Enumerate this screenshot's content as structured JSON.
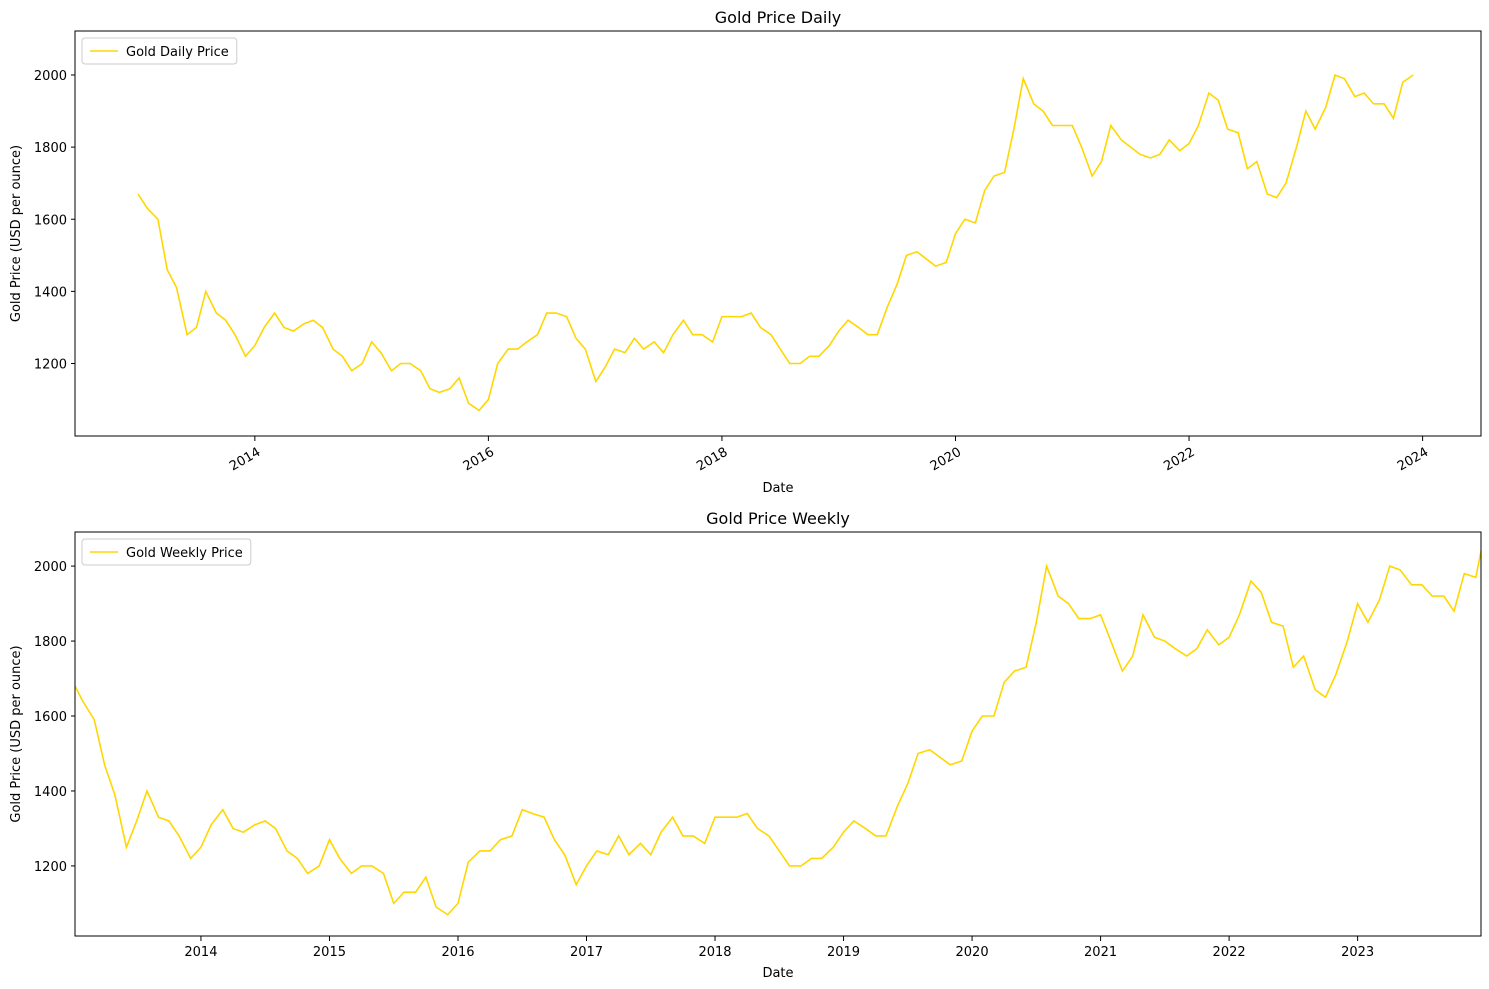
{
  "chart_data": [
    {
      "type": "line",
      "title": "Gold Price Daily",
      "x_label": "Date",
      "y_label": "Gold Price (USD per ounce)",
      "x": [
        2013.0,
        2013.08,
        2013.17,
        2013.25,
        2013.33,
        2013.42,
        2013.5,
        2013.58,
        2013.67,
        2013.75,
        2013.83,
        2013.92,
        2014.0,
        2014.08,
        2014.17,
        2014.25,
        2014.33,
        2014.42,
        2014.5,
        2014.58,
        2014.67,
        2014.75,
        2014.83,
        2014.92,
        2015.0,
        2015.08,
        2015.17,
        2015.25,
        2015.33,
        2015.42,
        2015.5,
        2015.58,
        2015.67,
        2015.75,
        2015.83,
        2015.92,
        2016.0,
        2016.08,
        2016.17,
        2016.25,
        2016.33,
        2016.42,
        2016.5,
        2016.58,
        2016.67,
        2016.75,
        2016.83,
        2016.92,
        2017.0,
        2017.08,
        2017.17,
        2017.25,
        2017.33,
        2017.42,
        2017.5,
        2017.58,
        2017.67,
        2017.75,
        2017.83,
        2017.92,
        2018.0,
        2018.08,
        2018.17,
        2018.25,
        2018.33,
        2018.42,
        2018.5,
        2018.58,
        2018.67,
        2018.75,
        2018.83,
        2018.92,
        2019.0,
        2019.08,
        2019.17,
        2019.25,
        2019.33,
        2019.42,
        2019.5,
        2019.58,
        2019.67,
        2019.75,
        2019.83,
        2019.92,
        2020.0,
        2020.08,
        2020.17,
        2020.25,
        2020.33,
        2020.42,
        2020.5,
        2020.58,
        2020.67,
        2020.75,
        2020.83,
        2020.92,
        2021.0,
        2021.08,
        2021.17,
        2021.25,
        2021.33,
        2021.42,
        2021.5,
        2021.58,
        2021.67,
        2021.75,
        2021.83,
        2021.92,
        2022.0,
        2022.08,
        2022.17,
        2022.25,
        2022.33,
        2022.42,
        2022.5,
        2022.58,
        2022.67,
        2022.75,
        2022.83,
        2022.92,
        2023.0,
        2023.08,
        2023.17,
        2023.25,
        2023.33,
        2023.42,
        2023.5,
        2023.58,
        2023.67,
        2023.75,
        2023.83,
        2023.92
      ],
      "series": [
        {
          "name": "Gold Daily Price",
          "color": "#ffd700",
          "values": [
            1670,
            1630,
            1600,
            1460,
            1410,
            1280,
            1300,
            1400,
            1340,
            1320,
            1280,
            1220,
            1250,
            1300,
            1340,
            1300,
            1290,
            1310,
            1320,
            1300,
            1240,
            1220,
            1180,
            1200,
            1260,
            1230,
            1180,
            1200,
            1200,
            1180,
            1130,
            1120,
            1130,
            1160,
            1090,
            1070,
            1100,
            1200,
            1240,
            1240,
            1260,
            1280,
            1340,
            1340,
            1330,
            1270,
            1240,
            1150,
            1190,
            1240,
            1230,
            1270,
            1240,
            1260,
            1230,
            1280,
            1320,
            1280,
            1280,
            1260,
            1330,
            1330,
            1330,
            1340,
            1300,
            1280,
            1240,
            1200,
            1200,
            1220,
            1220,
            1250,
            1290,
            1320,
            1300,
            1280,
            1280,
            1360,
            1420,
            1500,
            1510,
            1490,
            1470,
            1480,
            1560,
            1600,
            1590,
            1680,
            1720,
            1730,
            1850,
            1990,
            1920,
            1900,
            1860,
            1860,
            1860,
            1800,
            1720,
            1760,
            1860,
            1820,
            1800,
            1780,
            1770,
            1780,
            1820,
            1790,
            1810,
            1860,
            1950,
            1930,
            1850,
            1840,
            1740,
            1760,
            1670,
            1660,
            1700,
            1800,
            1900,
            1850,
            1910,
            2000,
            1990,
            1940,
            1950,
            1920,
            1920,
            1880,
            1980,
            2000
          ]
        }
      ],
      "xlim": [
        2012.46,
        2024.5
      ],
      "xticks": [
        2014,
        2016,
        2018,
        2020,
        2022,
        2024
      ],
      "xtick_rotation": 30,
      "ylim": [
        999,
        2122
      ],
      "yticks": [
        1200,
        1400,
        1600,
        1800,
        2000
      ],
      "legend": "upper left"
    },
    {
      "type": "line",
      "title": "Gold Price Weekly",
      "x_label": "Date",
      "y_label": "Gold Price (USD per ounce)",
      "x": [
        2013.02,
        2013.08,
        2013.17,
        2013.25,
        2013.33,
        2013.42,
        2013.5,
        2013.58,
        2013.67,
        2013.75,
        2013.83,
        2013.92,
        2014.0,
        2014.08,
        2014.17,
        2014.25,
        2014.33,
        2014.42,
        2014.5,
        2014.58,
        2014.67,
        2014.75,
        2014.83,
        2014.92,
        2015.0,
        2015.08,
        2015.17,
        2015.25,
        2015.33,
        2015.42,
        2015.5,
        2015.58,
        2015.67,
        2015.75,
        2015.83,
        2015.92,
        2016.0,
        2016.08,
        2016.17,
        2016.25,
        2016.33,
        2016.42,
        2016.5,
        2016.58,
        2016.67,
        2016.75,
        2016.83,
        2016.92,
        2017.0,
        2017.08,
        2017.17,
        2017.25,
        2017.33,
        2017.42,
        2017.5,
        2017.58,
        2017.67,
        2017.75,
        2017.83,
        2017.92,
        2018.0,
        2018.08,
        2018.17,
        2018.25,
        2018.33,
        2018.42,
        2018.5,
        2018.58,
        2018.67,
        2018.75,
        2018.83,
        2018.92,
        2019.0,
        2019.08,
        2019.17,
        2019.25,
        2019.33,
        2019.42,
        2019.5,
        2019.58,
        2019.67,
        2019.75,
        2019.83,
        2019.92,
        2020.0,
        2020.08,
        2020.17,
        2020.25,
        2020.33,
        2020.42,
        2020.5,
        2020.58,
        2020.67,
        2020.75,
        2020.83,
        2020.92,
        2021.0,
        2021.08,
        2021.17,
        2021.25,
        2021.33,
        2021.42,
        2021.5,
        2021.58,
        2021.67,
        2021.75,
        2021.83,
        2021.92,
        2022.0,
        2022.08,
        2022.17,
        2022.25,
        2022.33,
        2022.42,
        2022.5,
        2022.58,
        2022.67,
        2022.75,
        2022.83,
        2022.92,
        2023.0,
        2023.08,
        2023.17,
        2023.25,
        2023.33,
        2023.42,
        2023.5,
        2023.58,
        2023.67,
        2023.75,
        2023.83,
        2023.92,
        2023.96
      ],
      "series": [
        {
          "name": "Gold Weekly Price",
          "color": "#ffd700",
          "values": [
            1680,
            1640,
            1590,
            1470,
            1390,
            1250,
            1320,
            1400,
            1330,
            1320,
            1280,
            1220,
            1250,
            1310,
            1350,
            1300,
            1290,
            1310,
            1320,
            1300,
            1240,
            1220,
            1180,
            1200,
            1270,
            1220,
            1180,
            1200,
            1200,
            1180,
            1100,
            1130,
            1130,
            1170,
            1090,
            1070,
            1100,
            1210,
            1240,
            1240,
            1270,
            1280,
            1350,
            1340,
            1330,
            1270,
            1230,
            1150,
            1200,
            1240,
            1230,
            1280,
            1230,
            1260,
            1230,
            1290,
            1330,
            1280,
            1280,
            1260,
            1330,
            1330,
            1330,
            1340,
            1300,
            1280,
            1240,
            1200,
            1200,
            1220,
            1220,
            1250,
            1290,
            1320,
            1300,
            1280,
            1280,
            1360,
            1420,
            1500,
            1510,
            1490,
            1470,
            1480,
            1560,
            1600,
            1600,
            1690,
            1720,
            1730,
            1850,
            2000,
            1920,
            1900,
            1860,
            1860,
            1870,
            1800,
            1720,
            1760,
            1870,
            1810,
            1800,
            1780,
            1760,
            1780,
            1830,
            1790,
            1810,
            1870,
            1960,
            1930,
            1850,
            1840,
            1730,
            1760,
            1670,
            1650,
            1710,
            1800,
            1900,
            1850,
            1910,
            2000,
            1990,
            1950,
            1950,
            1920,
            1920,
            1880,
            1980,
            1970,
            2040
          ]
        }
      ],
      "xlim": [
        2013.02,
        2023.96
      ],
      "xticks": [
        2014,
        2015,
        2016,
        2017,
        2018,
        2019,
        2020,
        2021,
        2022,
        2023
      ],
      "ylim": [
        1013,
        2091
      ],
      "yticks": [
        1200,
        1400,
        1600,
        1800,
        2000
      ],
      "legend": "upper left"
    }
  ]
}
